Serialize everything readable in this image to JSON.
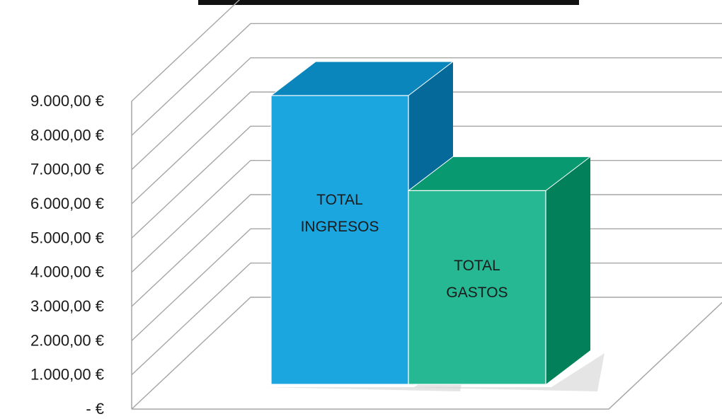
{
  "chart_data": {
    "type": "bar",
    "style": "3d-column",
    "title": "",
    "categories": [
      "TOTAL INGRESOS",
      "TOTAL GASTOS"
    ],
    "bar_label_lines": [
      [
        "TOTAL",
        "INGRESOS"
      ],
      [
        "TOTAL",
        "GASTOS"
      ]
    ],
    "values": [
      8500,
      5700
    ],
    "ylim": [
      0,
      9000
    ],
    "ytick_values": [
      0,
      1000,
      2000,
      3000,
      4000,
      5000,
      6000,
      7000,
      8000,
      9000
    ],
    "ytick_labels": [
      "-   €",
      "1.000,00 €",
      "2.000,00 €",
      "3.000,00 €",
      "4.000,00 €",
      "5.000,00 €",
      "6.000,00 €",
      "7.000,00 €",
      "8.000,00 €",
      "9.000,00 €"
    ],
    "grid": true,
    "legend": false,
    "colors": {
      "bar1_front": "#1ca6e0",
      "bar1_top": "#0a86bd",
      "bar1_side": "#056a99",
      "bar2_front": "#26b893",
      "bar2_top": "#099970",
      "bar2_side": "#02805a",
      "grid": "#a6a6a6",
      "title_bar": "#111111"
    }
  }
}
